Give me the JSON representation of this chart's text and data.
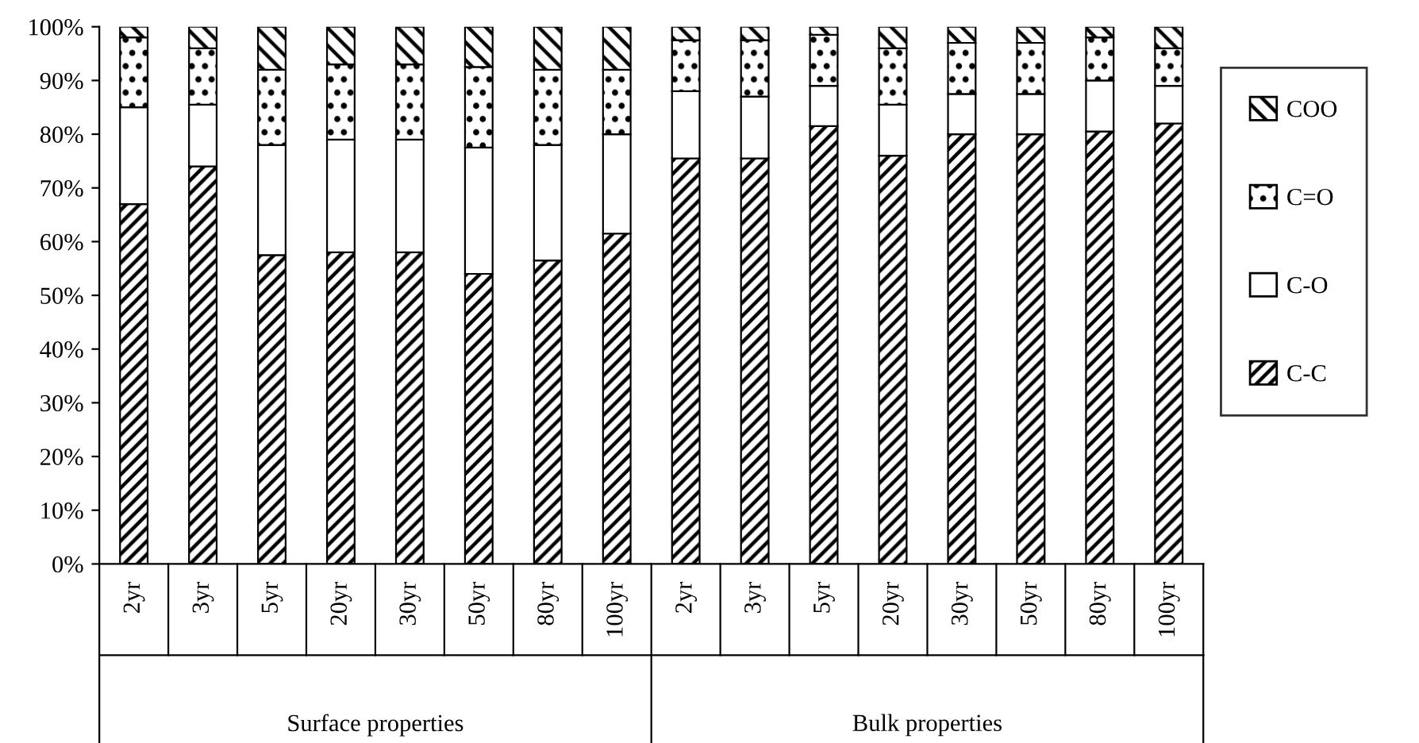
{
  "chart_data": {
    "type": "bar",
    "stacked": true,
    "categories": [
      "2yr",
      "3yr",
      "5yr",
      "20yr",
      "30yr",
      "50yr",
      "80yr",
      "100yr",
      "2yr",
      "3yr",
      "5yr",
      "20yr",
      "30yr",
      "50yr",
      "80yr",
      "100yr"
    ],
    "series": [
      {
        "name": "C-C",
        "color": "#000000",
        "values": [
          67,
          74,
          57.5,
          58,
          58,
          54,
          56.5,
          61.5,
          75.5,
          75.5,
          81.5,
          76,
          80,
          80,
          80.5,
          82
        ]
      },
      {
        "name": "C-O",
        "color": "#ffffff",
        "values": [
          18,
          11.5,
          20.5,
          21,
          21,
          23.5,
          21.5,
          18.5,
          12.5,
          11.5,
          7.5,
          9.5,
          7.5,
          7.5,
          9.5,
          7
        ]
      },
      {
        "name": "C=O",
        "color": "#000000",
        "values": [
          13,
          10.5,
          14,
          14,
          14,
          15,
          14,
          12,
          9.5,
          10.5,
          9.5,
          10.5,
          9.5,
          9.5,
          8,
          7
        ]
      },
      {
        "name": "COO",
        "color": "#000000",
        "values": [
          2,
          4,
          8,
          7,
          7,
          7.5,
          8,
          8,
          2.5,
          2.5,
          1.5,
          4,
          3,
          3,
          2,
          4
        ]
      }
    ],
    "ylim": [
      0,
      100
    ],
    "yticks": [
      {
        "value": 0,
        "label": "0%"
      },
      {
        "value": 10,
        "label": "10%"
      },
      {
        "value": 20,
        "label": "20%"
      },
      {
        "value": 30,
        "label": "30%"
      },
      {
        "value": 40,
        "label": "40%"
      },
      {
        "value": 50,
        "label": "50%"
      },
      {
        "value": 60,
        "label": "60%"
      },
      {
        "value": 70,
        "label": "70%"
      },
      {
        "value": 80,
        "label": "80%"
      },
      {
        "value": 90,
        "label": "90%"
      },
      {
        "value": 100,
        "label": "100%"
      }
    ],
    "annotations": [
      "Surface properties",
      "Bulk properties"
    ],
    "legend": "right",
    "grid": false
  }
}
